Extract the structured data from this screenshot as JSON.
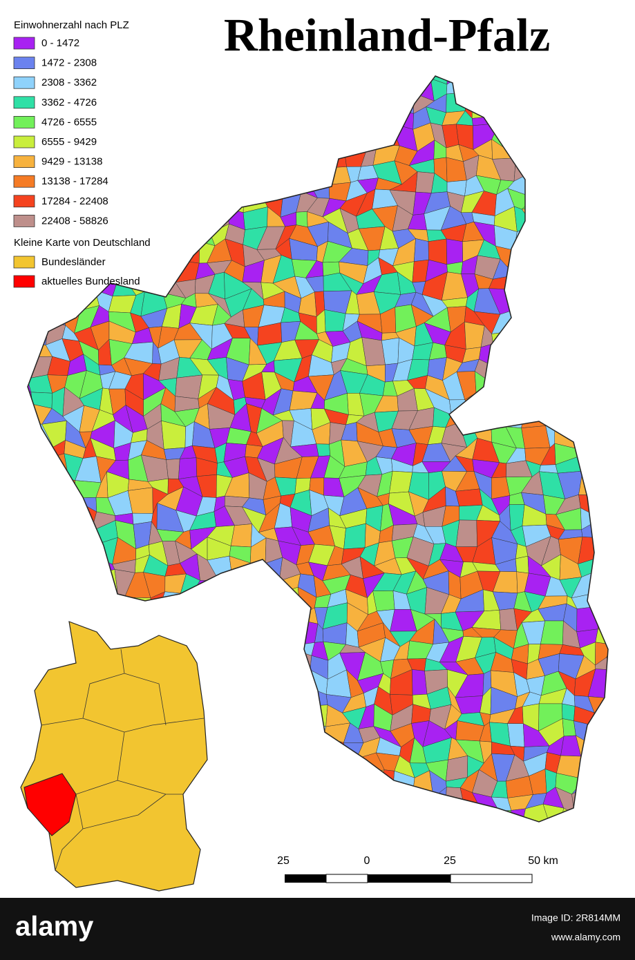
{
  "title": "Rheinland-Pfalz",
  "legend": {
    "title": "Einwohnerzahl nach PLZ",
    "items": [
      {
        "label": "0 - 1472",
        "color": "#a822f2"
      },
      {
        "label": "1472 - 2308",
        "color": "#6b82ee"
      },
      {
        "label": "2308 - 3362",
        "color": "#8fd2fb"
      },
      {
        "label": "3362 - 4726",
        "color": "#2fe0a6"
      },
      {
        "label": "4726 - 6555",
        "color": "#72f05a"
      },
      {
        "label": "6555 - 9429",
        "color": "#c9ee3c"
      },
      {
        "label": "9429 - 13138",
        "color": "#f7b23e"
      },
      {
        "label": "13138 - 17284",
        "color": "#f57b25"
      },
      {
        "label": "17284 - 22408",
        "color": "#f5431f"
      },
      {
        "label": "22408 - 58826",
        "color": "#be8f8b"
      }
    ]
  },
  "inset_legend": {
    "title": "Kleine Karte von Deutschland",
    "items": [
      {
        "label": "Bundesländer",
        "color": "#f2c530"
      },
      {
        "label": "aktuelles Bundesland",
        "color": "#ff0000"
      }
    ]
  },
  "scale_bar": {
    "labels": [
      "25",
      "0",
      "25",
      "50 km"
    ]
  },
  "footer": {
    "logo": "alamy",
    "image_id": "Image ID: 2R814MM",
    "url": "www.alamy.com"
  }
}
